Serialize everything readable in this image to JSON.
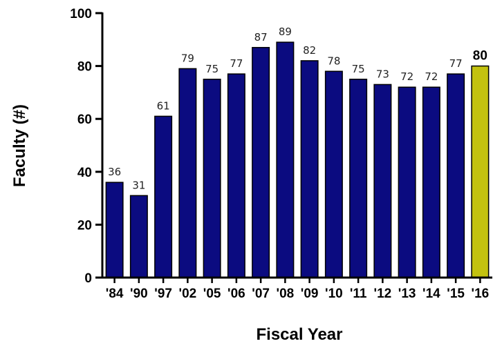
{
  "chart_data": {
    "type": "bar",
    "title": "",
    "xlabel": "Fiscal Year",
    "ylabel": "Faculty (#)",
    "categories": [
      "'84",
      "'90",
      "'97",
      "'02",
      "'05",
      "'06",
      "'07",
      "'08",
      "'09",
      "'10",
      "'11",
      "'12",
      "'13",
      "'14",
      "'15",
      "'16"
    ],
    "values": [
      36,
      31,
      61,
      79,
      75,
      77,
      87,
      89,
      82,
      78,
      75,
      73,
      72,
      72,
      77,
      80
    ],
    "value_labels": [
      "36",
      "31",
      "61",
      "79",
      "75",
      "77",
      "87",
      "89",
      "82",
      "78",
      "75",
      "73",
      "72",
      "72",
      "77",
      "80"
    ],
    "highlight_index": 15,
    "ylim": [
      0,
      100
    ],
    "yticks": [
      0,
      20,
      40,
      60,
      80,
      100
    ],
    "ytick_labels": [
      "0",
      "20",
      "40",
      "60",
      "80",
      "100"
    ],
    "grid": false,
    "legend": "none",
    "colors": {
      "bar": "#0b0b80",
      "highlight": "#c3c20f",
      "bar_edge": "#000000",
      "axis": "#000000"
    }
  }
}
